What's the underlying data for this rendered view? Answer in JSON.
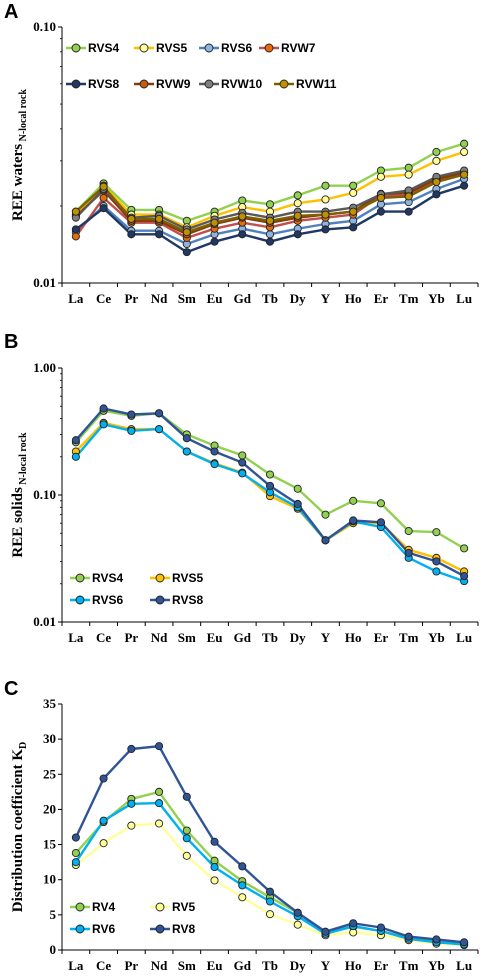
{
  "chart_data": [
    {
      "panel": "A",
      "type": "line",
      "ylabel_main": "REE waters",
      "ylabel_sub": "N-local rock",
      "yscale": "log",
      "ylim": [
        0.01,
        0.1
      ],
      "yticks": [
        "0.01",
        "0.10"
      ],
      "categories": [
        "La",
        "Ce",
        "Pr",
        "Nd",
        "Sm",
        "Eu",
        "Gd",
        "Tb",
        "Dy",
        "Y",
        "Ho",
        "Er",
        "Tm",
        "Yb",
        "Lu"
      ],
      "legend_position": "top",
      "series": [
        {
          "name": "RVS4",
          "color": "#92d050",
          "marker": "#92d050",
          "values": [
            0.019,
            0.0245,
            0.0193,
            0.0193,
            0.0175,
            0.019,
            0.021,
            0.0203,
            0.022,
            0.024,
            0.024,
            0.0275,
            0.0282,
            0.0325,
            0.035
          ]
        },
        {
          "name": "RVS5",
          "color": "#ffc000",
          "marker": "#ffff99",
          "values": [
            0.0185,
            0.024,
            0.0185,
            0.0185,
            0.0165,
            0.0183,
            0.0198,
            0.019,
            0.0205,
            0.0212,
            0.0225,
            0.026,
            0.0265,
            0.03,
            0.0325
          ]
        },
        {
          "name": "RVS6",
          "color": "#4f81bd",
          "marker": "#8db3e2",
          "values": [
            0.0158,
            0.02,
            0.016,
            0.016,
            0.0142,
            0.0155,
            0.0163,
            0.0155,
            0.0163,
            0.017,
            0.0175,
            0.0203,
            0.0207,
            0.0233,
            0.0255
          ]
        },
        {
          "name": "RVW7",
          "color": "#c0504d",
          "marker": "#e46c0a",
          "values": [
            0.0152,
            0.0215,
            0.0172,
            0.0172,
            0.015,
            0.0163,
            0.0172,
            0.0165,
            0.0175,
            0.018,
            0.0185,
            0.022,
            0.022,
            0.0252,
            0.027
          ]
        },
        {
          "name": "RVS8",
          "color": "#1f3864",
          "marker": "#1f3864",
          "values": [
            0.0162,
            0.0196,
            0.0155,
            0.0155,
            0.0132,
            0.0145,
            0.0155,
            0.0145,
            0.0155,
            0.0162,
            0.0165,
            0.019,
            0.019,
            0.0222,
            0.024
          ]
        },
        {
          "name": "RVW9",
          "color": "#843c0c",
          "marker": "#c55a11",
          "values": [
            0.0182,
            0.023,
            0.0175,
            0.0175,
            0.0155,
            0.017,
            0.018,
            0.0172,
            0.018,
            0.0185,
            0.019,
            0.0223,
            0.0225,
            0.0255,
            0.027
          ]
        },
        {
          "name": "RVW10",
          "color": "#595959",
          "marker": "#7f7f7f",
          "values": [
            0.018,
            0.0233,
            0.018,
            0.0183,
            0.0162,
            0.0177,
            0.0188,
            0.018,
            0.019,
            0.019,
            0.0197,
            0.0222,
            0.023,
            0.026,
            0.0275
          ]
        },
        {
          "name": "RVW11",
          "color": "#7f6000",
          "marker": "#bf9000",
          "values": [
            0.019,
            0.0238,
            0.0178,
            0.0178,
            0.0158,
            0.0172,
            0.0182,
            0.0175,
            0.0183,
            0.0185,
            0.019,
            0.0215,
            0.0218,
            0.0248,
            0.0265
          ]
        }
      ]
    },
    {
      "panel": "B",
      "type": "line",
      "ylabel_main": "REE solids",
      "ylabel_sub": "N-local rock",
      "yscale": "log",
      "ylim": [
        0.01,
        1.0
      ],
      "yticks": [
        "0.01",
        "0.10",
        "1.00"
      ],
      "categories": [
        "La",
        "Ce",
        "Pr",
        "Nd",
        "Sm",
        "Eu",
        "Gd",
        "Tb",
        "Dy",
        "Y",
        "Ho",
        "Er",
        "Tm",
        "Yb",
        "Lu"
      ],
      "legend_position": "bottom-left",
      "series": [
        {
          "name": "RVS4",
          "color": "#92d050",
          "marker": "#92d050",
          "values": [
            0.26,
            0.46,
            0.42,
            0.44,
            0.3,
            0.245,
            0.205,
            0.145,
            0.112,
            0.07,
            0.09,
            0.086,
            0.052,
            0.051,
            0.038
          ]
        },
        {
          "name": "RVS5",
          "color": "#ffc000",
          "marker": "#ffc000",
          "values": [
            0.22,
            0.37,
            0.33,
            0.33,
            0.22,
            0.178,
            0.15,
            0.098,
            0.078,
            0.044,
            0.06,
            0.06,
            0.037,
            0.032,
            0.025
          ]
        },
        {
          "name": "RVS6",
          "color": "#00b0f0",
          "marker": "#00b0f0",
          "values": [
            0.2,
            0.36,
            0.32,
            0.33,
            0.22,
            0.175,
            0.148,
            0.105,
            0.08,
            0.044,
            0.062,
            0.056,
            0.032,
            0.025,
            0.021
          ]
        },
        {
          "name": "RVS8",
          "color": "#2f5597",
          "marker": "#2f5597",
          "values": [
            0.27,
            0.48,
            0.43,
            0.44,
            0.28,
            0.22,
            0.18,
            0.118,
            0.085,
            0.044,
            0.063,
            0.061,
            0.035,
            0.03,
            0.023
          ]
        }
      ]
    },
    {
      "panel": "C",
      "type": "line",
      "ylabel_main": "Distribution coefficient K",
      "ylabel_sub": "D",
      "yscale": "linear",
      "ylim": [
        0,
        35
      ],
      "yticks": [
        "0",
        "5",
        "10",
        "15",
        "20",
        "25",
        "30",
        "35"
      ],
      "categories": [
        "La",
        "Ce",
        "Pr",
        "Nd",
        "Sm",
        "Eu",
        "Gd",
        "Tb",
        "Dy",
        "Y",
        "Ho",
        "Er",
        "Tm",
        "Yb",
        "Lu"
      ],
      "legend_position": "bottom-left",
      "series": [
        {
          "name": "RV4",
          "color": "#92d050",
          "marker": "#92d050",
          "values": [
            13.8,
            18.2,
            21.5,
            22.5,
            17.0,
            12.7,
            9.8,
            7.5,
            5.3,
            2.4,
            3.3,
            2.7,
            1.7,
            1.3,
            1.0
          ]
        },
        {
          "name": "RV5",
          "color": "#ffff99",
          "marker": "#ffff99",
          "values": [
            12.1,
            15.2,
            17.7,
            18.0,
            13.4,
            9.9,
            7.5,
            5.1,
            3.6,
            2.1,
            2.5,
            2.1,
            1.4,
            0.9,
            0.7
          ]
        },
        {
          "name": "RV6",
          "color": "#00b0f0",
          "marker": "#00b0f0",
          "values": [
            12.5,
            18.4,
            20.8,
            20.9,
            15.9,
            11.8,
            9.2,
            6.9,
            4.8,
            2.3,
            3.4,
            2.7,
            1.6,
            1.1,
            0.8
          ]
        },
        {
          "name": "RV8",
          "color": "#2f5597",
          "marker": "#2f5597",
          "values": [
            16.0,
            24.4,
            28.6,
            29.0,
            21.8,
            15.4,
            11.9,
            8.3,
            5.3,
            2.6,
            3.8,
            3.2,
            1.9,
            1.5,
            1.1
          ]
        }
      ]
    }
  ]
}
